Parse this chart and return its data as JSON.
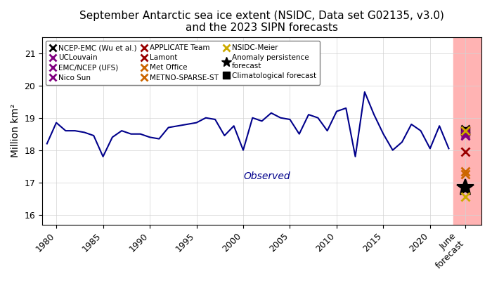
{
  "title": "September Antarctic sea ice extent (NSIDC, Data set G02135, v3.0)\nand the 2023 SIPN forecasts",
  "ylabel": "Million km²",
  "xlim_left": 1978.5,
  "xlim_right": 2025.5,
  "ylim": [
    15.7,
    21.5
  ],
  "observed_years": [
    1979,
    1980,
    1981,
    1982,
    1983,
    1984,
    1985,
    1986,
    1987,
    1988,
    1989,
    1990,
    1991,
    1992,
    1993,
    1994,
    1995,
    1996,
    1997,
    1998,
    1999,
    2000,
    2001,
    2002,
    2003,
    2004,
    2005,
    2006,
    2007,
    2008,
    2009,
    2010,
    2011,
    2012,
    2013,
    2014,
    2015,
    2016,
    2017,
    2018,
    2019,
    2020,
    2021,
    2022
  ],
  "observed_values": [
    18.2,
    18.85,
    18.6,
    18.6,
    18.55,
    18.45,
    17.8,
    18.4,
    18.6,
    18.5,
    18.5,
    18.4,
    18.35,
    18.7,
    18.75,
    18.8,
    18.85,
    19.0,
    18.95,
    18.45,
    18.75,
    18.0,
    19.0,
    18.9,
    19.15,
    19.0,
    18.95,
    18.5,
    19.1,
    19.0,
    18.6,
    19.2,
    19.3,
    17.8,
    19.8,
    19.1,
    18.5,
    18.0,
    18.25,
    18.8,
    18.6,
    18.05,
    18.75,
    18.05
  ],
  "observed_label": "Observed",
  "observed_color": "darkblue",
  "forecast_x": 2023.8,
  "shading_start": 2022.5,
  "shading_color": "#ffb3b3",
  "forecasts": [
    {
      "label": "NCEP-EMC (Wu et al.)",
      "value": 18.65,
      "color": "black",
      "marker": "x",
      "markersize": 9,
      "markeredgewidth": 2
    },
    {
      "label": "UCLouvain",
      "value": 18.55,
      "color": "purple",
      "marker": "x",
      "markersize": 9,
      "markeredgewidth": 2
    },
    {
      "label": "EMC/NCEP (UFS)",
      "value": 18.5,
      "color": "purple",
      "marker": "x",
      "markersize": 9,
      "markeredgewidth": 2
    },
    {
      "label": "Nico Sun",
      "value": 18.45,
      "color": "purple",
      "marker": "x",
      "markersize": 9,
      "markeredgewidth": 2
    },
    {
      "label": "APPLICATE Team",
      "value": 18.6,
      "color": "#990000",
      "marker": "x",
      "markersize": 9,
      "markeredgewidth": 2
    },
    {
      "label": "Lamont",
      "value": 17.95,
      "color": "#990000",
      "marker": "x",
      "markersize": 9,
      "markeredgewidth": 2
    },
    {
      "label": "Met Office",
      "value": 17.35,
      "color": "#cc6600",
      "marker": "x",
      "markersize": 9,
      "markeredgewidth": 2
    },
    {
      "label": "METNO-SPARSE-ST",
      "value": 17.25,
      "color": "#cc6600",
      "marker": "x",
      "markersize": 9,
      "markeredgewidth": 2
    },
    {
      "label": "NSIDC-Meier",
      "value": 18.6,
      "color": "#ccaa00",
      "marker": "x",
      "markersize": 9,
      "markeredgewidth": 2
    },
    {
      "label": "Anomaly persistence forecast",
      "value": 16.85,
      "color": "black",
      "marker": "*",
      "markersize": 18,
      "markeredgewidth": 1.5
    },
    {
      "label": "Climatological forecast",
      "value": 16.55,
      "color": "#ccaa00",
      "marker": "x",
      "markersize": 9,
      "markeredgewidth": 2
    }
  ],
  "clim_square_value": 18.58,
  "xtick_years": [
    1980,
    1985,
    1990,
    1995,
    2000,
    2005,
    2010,
    2015,
    2020
  ],
  "yticks": [
    16,
    17,
    18,
    19,
    20,
    21
  ],
  "legend_col1": [
    {
      "label": "NCEP-EMC (Wu et al.)",
      "color": "black",
      "marker": "x"
    },
    {
      "label": "UCLouvain",
      "color": "purple",
      "marker": "x"
    },
    {
      "label": "EMC/NCEP (UFS)",
      "color": "purple",
      "marker": "x"
    },
    {
      "label": "Nico Sun",
      "color": "purple",
      "marker": "x"
    }
  ],
  "legend_col2": [
    {
      "label": "APPLICATE Team",
      "color": "#990000",
      "marker": "x"
    },
    {
      "label": "Lamont",
      "color": "#990000",
      "marker": "x"
    },
    {
      "label": "Met Office",
      "color": "#cc6600",
      "marker": "x"
    },
    {
      "label": "METNO-SPARSE-ST",
      "color": "#cc6600",
      "marker": "x"
    }
  ],
  "legend_col3": [
    {
      "label": "NSIDC-Meier",
      "color": "#ccaa00",
      "marker": "x"
    },
    {
      "label": "Anomaly persistence\nforecast",
      "color": "black",
      "marker": "*"
    },
    {
      "label": "Climatological forecast",
      "color": "black",
      "marker": "s"
    }
  ]
}
